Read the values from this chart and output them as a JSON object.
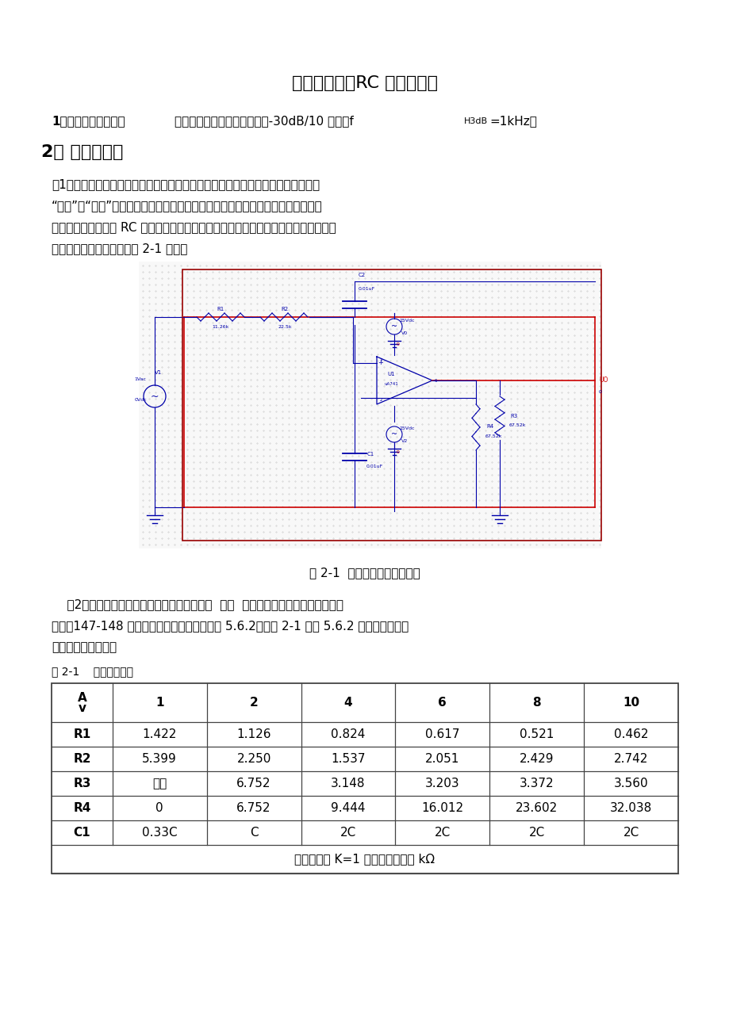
{
  "title": "设计题目一：RC 有源滤波器",
  "s1_bold": "1、设计指标及要求：",
  "s1_normal": "二阶低通，带外衰减速率大于-30dB/10 倍频，f",
  "s1_sub": "H3dB",
  "s1_end": "=1kHz。",
  "s2_header": "2、 设计方案：",
  "p1_line1": "（1）、二阶有源低通滤波电路工作原理：根据电容的通高频阻低频的特点和运放的",
  "p1_line2": "“虚短”和“虚断”，可以用它们来组成一个带有反馈网络的低通滤波电路！二阶有源",
  "p1_line3": "低通滤波电路由两节 RC 滤波电路和同相比例放大电路组成，其特点是输入阻抗高，输",
  "p1_line4": "出阻抗低。电路原理图由图 2-1 所示：",
  "fig_caption": "图 2-1  二阶有源低通滤波电路",
  "p2_line1": "（2）、主要参数设定：参考《电子线路设计  实验  测试》第二版，华中科技大学出",
  "p2_line2": "版社，147-148 页二阶低通滤波器设计表（表 5.6.2）。表 2-1 是表 5.6.2 的一部分，主要",
  "p2_line3": "用来设计参数的值：",
  "tbl_label": "表 2-1    电路原器件值",
  "tbl_headers": [
    "A\nv",
    "1",
    "2",
    "4",
    "6",
    "8",
    "10"
  ],
  "tbl_rows": [
    [
      "R1",
      "1.422",
      "1.126",
      "0.824",
      "0.617",
      "0.521",
      "0.462"
    ],
    [
      "R2",
      "5.399",
      "2.250",
      "1.537",
      "2.051",
      "2.429",
      "2.742"
    ],
    [
      "R3",
      "开路",
      "6.752",
      "3.148",
      "3.203",
      "3.372",
      "3.560"
    ],
    [
      "R4",
      "0",
      "6.752",
      "9.444",
      "16.012",
      "23.602",
      "32.038"
    ],
    [
      "C1",
      "0.33C",
      "C",
      "2C",
      "2C",
      "2C",
      "2C"
    ]
  ],
  "tbl_footnote": "电阻为参数 K=1 时的值，单位为 kΩ",
  "bg": "#ffffff",
  "black": "#000000",
  "blue": "#0000cc",
  "red": "#cc0000",
  "darkred": "#990000"
}
